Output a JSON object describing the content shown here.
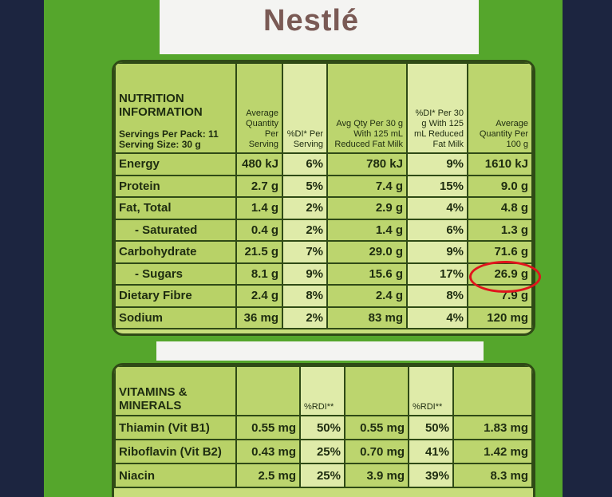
{
  "brand": "Nestlé",
  "nutrition": {
    "title": "NUTRITION INFORMATION",
    "servings_per_pack": "Servings Per Pack: 11",
    "serving_size": "Serving Size: 30 g",
    "columns": [
      "Average Quantity Per Serving",
      "%DI* Per Serving",
      "Avg Qty Per 30 g With 125 mL Reduced Fat Milk",
      "%DI* Per 30 g With 125 mL Reduced Fat Milk",
      "Average Quantity Per 100 g"
    ],
    "rows": [
      [
        "Energy",
        "480 kJ",
        "6%",
        "780 kJ",
        "9%",
        "1610 kJ"
      ],
      [
        "Protein",
        "2.7 g",
        "5%",
        "7.4 g",
        "15%",
        "9.0 g"
      ],
      [
        "Fat, Total",
        "1.4 g",
        "2%",
        "2.9 g",
        "4%",
        "4.8 g"
      ],
      [
        "- Saturated",
        "0.4 g",
        "2%",
        "1.4 g",
        "6%",
        "1.3 g"
      ],
      [
        "Carbohydrate",
        "21.5 g",
        "7%",
        "29.0 g",
        "9%",
        "71.6 g"
      ],
      [
        "- Sugars",
        "8.1 g",
        "9%",
        "15.6 g",
        "17%",
        "26.9 g"
      ],
      [
        "Dietary Fibre",
        "2.4 g",
        "8%",
        "2.4 g",
        "8%",
        "7.9 g"
      ],
      [
        "Sodium",
        "36 mg",
        "2%",
        "83 mg",
        "4%",
        "120 mg"
      ]
    ]
  },
  "vitamins": {
    "title": "VITAMINS & MINERALS",
    "columns": [
      "%RDI**",
      "%RDI**"
    ],
    "rows": [
      [
        "Thiamin (Vit B1)",
        "0.55 mg",
        "50%",
        "0.55 mg",
        "50%",
        "1.83 mg"
      ],
      [
        "Riboflavin (Vit B2)",
        "0.43 mg",
        "25%",
        "0.70 mg",
        "41%",
        "1.42 mg"
      ],
      [
        "Niacin",
        "2.5 mg",
        "25%",
        "3.9 mg",
        "39%",
        "8.3 mg"
      ]
    ]
  }
}
